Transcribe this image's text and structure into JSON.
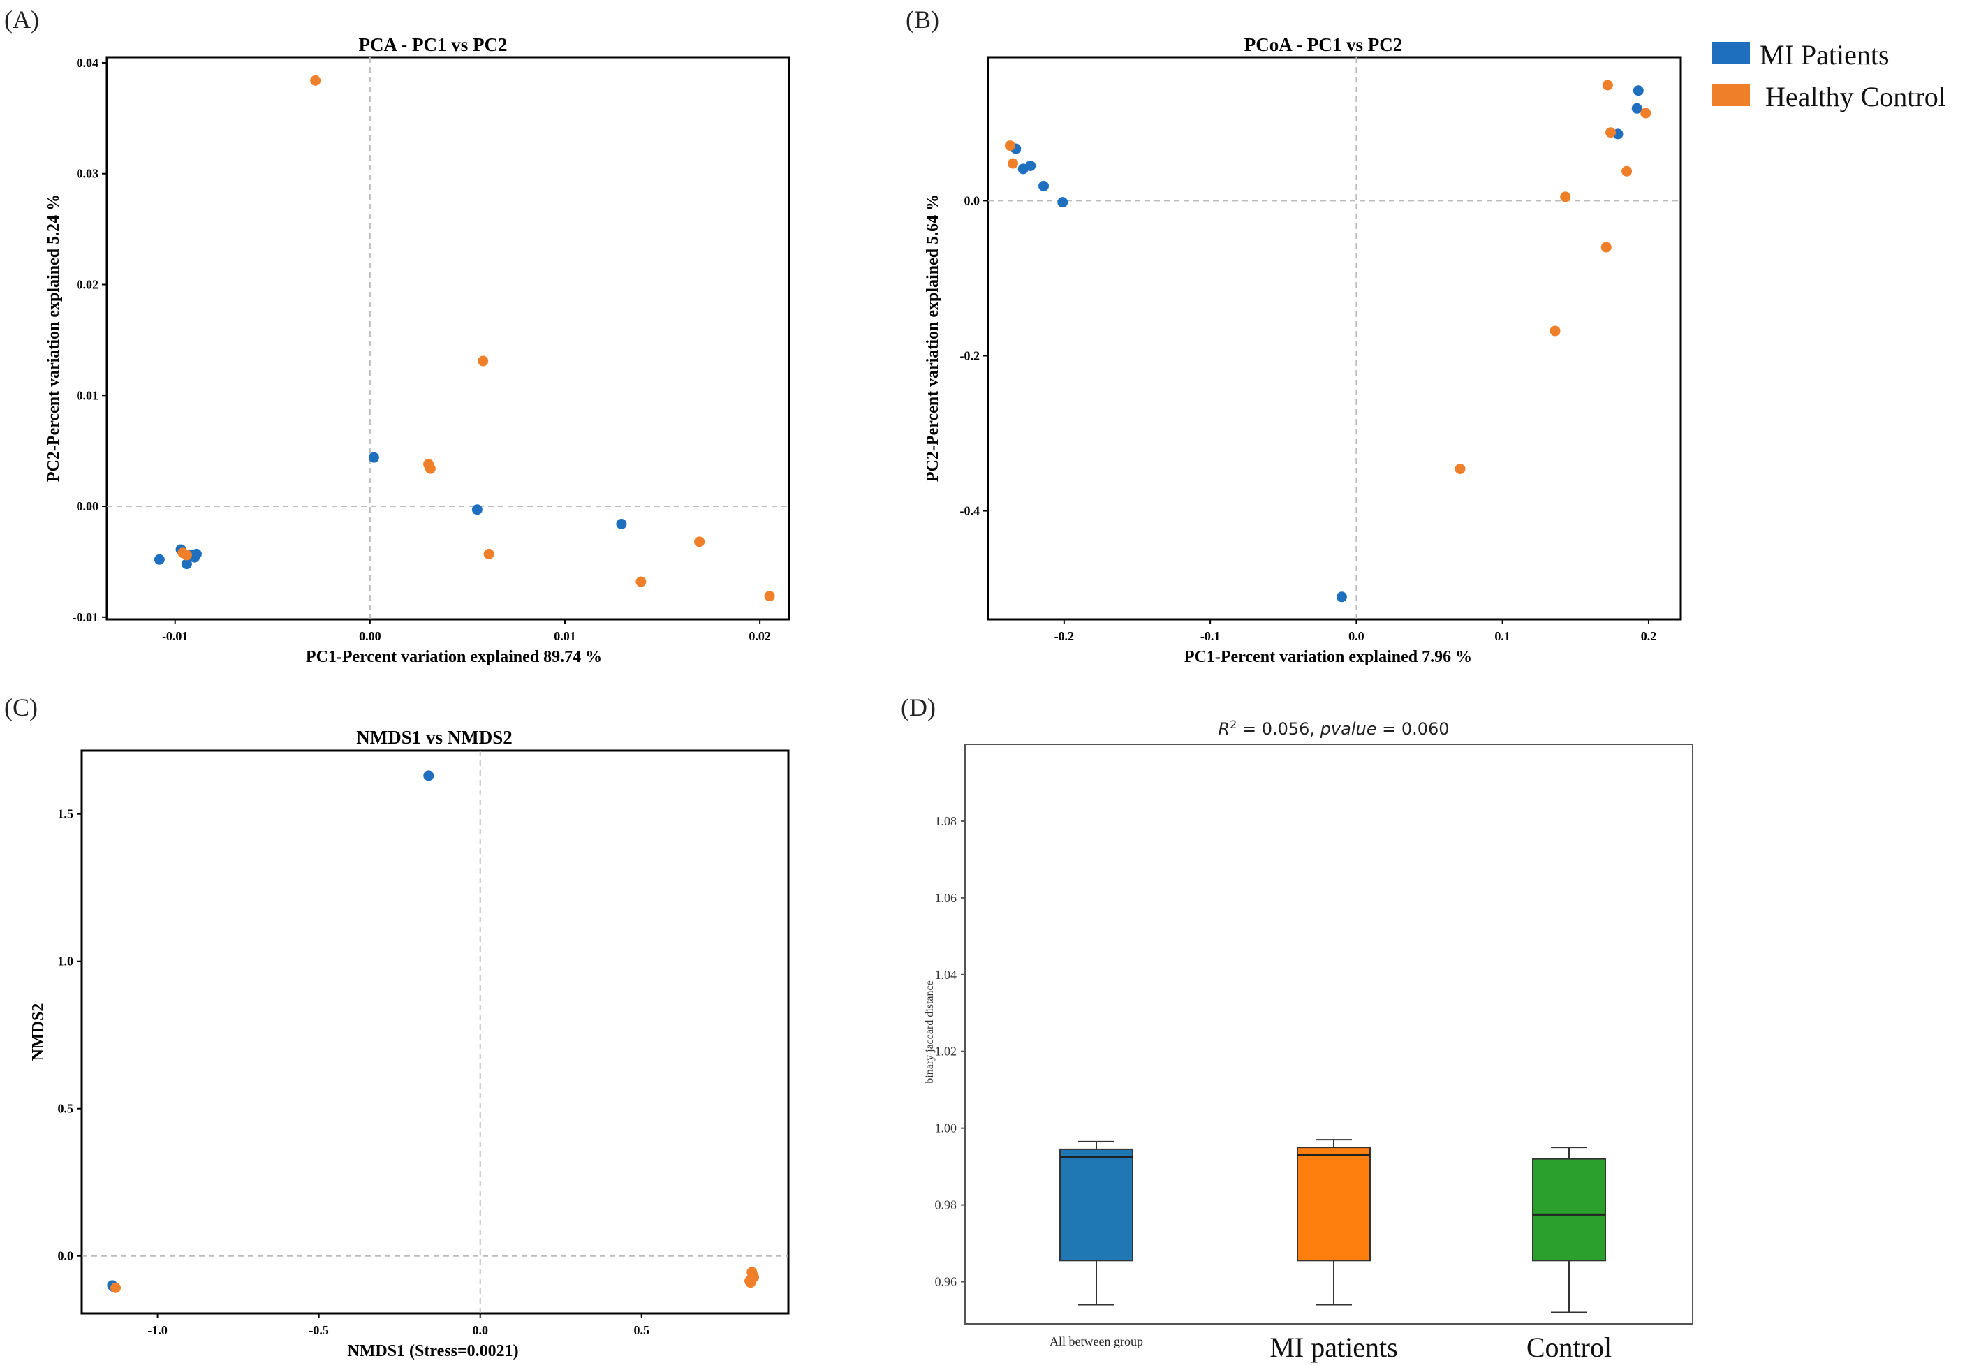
{
  "legend": {
    "items": [
      {
        "label": "MI Patients",
        "color": "#1f6fbf"
      },
      {
        "label": "Healthy Control",
        "color": "#f07f2a"
      }
    ]
  },
  "chart_data": [
    {
      "panel": "(A)",
      "type": "scatter",
      "title": "PCA - PC1 vs PC2",
      "xlabel": "PC1-Percent variation explained 89.74 %",
      "ylabel": "PC2-Percent variation explained 5.24 %",
      "xlim": [
        -0.0135,
        0.0215
      ],
      "ylim": [
        -0.0102,
        0.0405
      ],
      "xticks": [
        -0.01,
        0.0,
        0.01,
        0.02
      ],
      "yticks": [
        -0.01,
        0.0,
        0.01,
        0.02,
        0.03,
        0.04
      ],
      "xtick_labels": [
        "-0.01",
        "0.00",
        "0.01",
        "0.02"
      ],
      "ytick_labels": [
        "-0.01",
        "0.00",
        "0.01",
        "0.02",
        "0.03",
        "0.04"
      ],
      "series": [
        {
          "name": "MI Patients",
          "color": "#1f6fbf",
          "points": [
            [
              -0.0108,
              -0.0048
            ],
            [
              -0.0097,
              -0.0039
            ],
            [
              -0.0094,
              -0.0052
            ],
            [
              -0.0092,
              -0.0044
            ],
            [
              -0.009,
              -0.0046
            ],
            [
              -0.0089,
              -0.0043
            ],
            [
              0.0002,
              0.0044
            ],
            [
              0.0055,
              -0.0003
            ],
            [
              0.0129,
              -0.0016
            ]
          ]
        },
        {
          "name": "Healthy Control",
          "color": "#f07f2a",
          "points": [
            [
              -0.0096,
              -0.0042
            ],
            [
              -0.0094,
              -0.0044
            ],
            [
              -0.0028,
              0.0384
            ],
            [
              0.003,
              0.0038
            ],
            [
              0.0031,
              0.0034
            ],
            [
              0.0058,
              0.0131
            ],
            [
              0.0061,
              -0.0043
            ],
            [
              0.0139,
              -0.0068
            ],
            [
              0.0169,
              -0.0032
            ],
            [
              0.0205,
              -0.0081
            ]
          ]
        }
      ]
    },
    {
      "panel": "(B)",
      "type": "scatter",
      "title": "PCoA - PC1 vs PC2",
      "xlabel": "PC1-Percent variation explained 7.96 %",
      "ylabel": "PC2-Percent variation explained 5.64 %",
      "xlim": [
        -0.252,
        0.222
      ],
      "ylim": [
        -0.54,
        0.185
      ],
      "xticks": [
        -0.2,
        -0.1,
        0.0,
        0.1,
        0.2
      ],
      "yticks": [
        -0.4,
        -0.2,
        0.0
      ],
      "xtick_labels": [
        "-0.2",
        "-0.1",
        "0.0",
        "0.1",
        "0.2"
      ],
      "ytick_labels": [
        "-0.4",
        "-0.2",
        "0.0"
      ],
      "series": [
        {
          "name": "MI Patients",
          "color": "#1f6fbf",
          "points": [
            [
              -0.233,
              0.067
            ],
            [
              -0.228,
              0.041
            ],
            [
              -0.223,
              0.045
            ],
            [
              -0.214,
              0.019
            ],
            [
              -0.201,
              -0.002
            ],
            [
              -0.01,
              -0.511
            ],
            [
              0.179,
              0.086
            ],
            [
              0.192,
              0.119
            ],
            [
              0.193,
              0.142
            ]
          ]
        },
        {
          "name": "Healthy Control",
          "color": "#f07f2a",
          "points": [
            [
              -0.237,
              0.071
            ],
            [
              -0.235,
              0.048
            ],
            [
              0.071,
              -0.346
            ],
            [
              0.136,
              -0.168
            ],
            [
              0.143,
              0.005
            ],
            [
              0.171,
              -0.06
            ],
            [
              0.172,
              0.149
            ],
            [
              0.174,
              0.088
            ],
            [
              0.185,
              0.038
            ],
            [
              0.198,
              0.113
            ]
          ]
        }
      ]
    },
    {
      "panel": "(C)",
      "type": "scatter",
      "title": "NMDS1 vs NMDS2",
      "xlabel": "NMDS1 (Stress=0.0021)",
      "ylabel": "NMDS2",
      "xlim": [
        -1.235,
        0.955
      ],
      "ylim": [
        -0.195,
        1.715
      ],
      "xticks": [
        -1.0,
        -0.5,
        0.0,
        0.5
      ],
      "yticks": [
        0.0,
        0.5,
        1.0,
        1.5
      ],
      "xtick_labels": [
        "-1.0",
        "-0.5",
        "0.0",
        "0.5"
      ],
      "ytick_labels": [
        "0.0",
        "0.5",
        "1.0",
        "1.5"
      ],
      "series": [
        {
          "name": "MI Patients",
          "color": "#1f6fbf",
          "points": [
            [
              -1.14,
              -0.1
            ],
            [
              -1.135,
              -0.105
            ],
            [
              -0.16,
              1.63
            ]
          ]
        },
        {
          "name": "Healthy Control",
          "color": "#f07f2a",
          "points": [
            [
              -1.13,
              -0.108
            ],
            [
              0.835,
              -0.085
            ],
            [
              0.84,
              -0.078
            ],
            [
              0.845,
              -0.065
            ],
            [
              0.842,
              -0.055
            ],
            [
              0.848,
              -0.072
            ],
            [
              0.838,
              -0.09
            ]
          ]
        }
      ]
    },
    {
      "panel": "(D)",
      "type": "box",
      "title": "R² = 0.056, pvalue = 0.060",
      "title_parts": {
        "r": "R",
        "sup": "2",
        "mid": " = 0.056, ",
        "pv": "pvalue",
        "end": " = 0.060"
      },
      "ylabel": "binary jaccard distance",
      "ylim": [
        0.949,
        1.1
      ],
      "yticks": [
        0.96,
        0.98,
        1.0,
        1.02,
        1.04,
        1.06,
        1.08
      ],
      "ytick_labels": [
        "0.96",
        "0.98",
        "1.00",
        "1.02",
        "1.04",
        "1.06",
        "1.08"
      ],
      "categories": [
        "All between group",
        "MI patients",
        "Control"
      ],
      "boxes": [
        {
          "category": "All between group",
          "color": "#1f77b4",
          "whisker_low": 0.954,
          "q1": 0.9655,
          "median": 0.9925,
          "q3": 0.9945,
          "whisker_high": 0.9965
        },
        {
          "category": "MI patients",
          "color": "#ff7f0e",
          "whisker_low": 0.954,
          "q1": 0.9655,
          "median": 0.993,
          "q3": 0.995,
          "whisker_high": 0.997
        },
        {
          "category": "Control",
          "color": "#2ca02c",
          "whisker_low": 0.952,
          "q1": 0.9655,
          "median": 0.9775,
          "q3": 0.992,
          "whisker_high": 0.995
        }
      ]
    }
  ]
}
